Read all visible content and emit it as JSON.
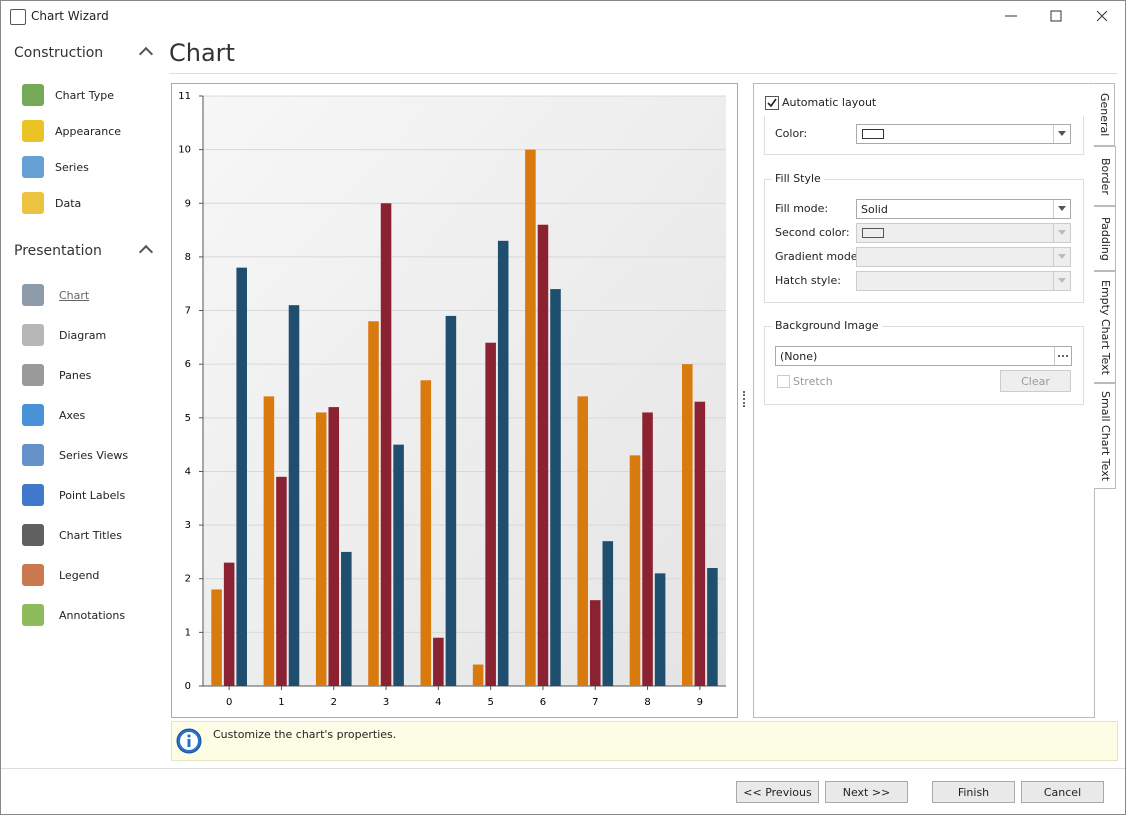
{
  "window": {
    "title": "Chart Wizard"
  },
  "nav": {
    "sections": [
      {
        "title": "Construction",
        "items": [
          "Chart Type",
          "Appearance",
          "Series",
          "Data"
        ]
      },
      {
        "title": "Presentation",
        "items": [
          "Chart",
          "Diagram",
          "Panes",
          "Axes",
          "Series Views",
          "Point Labels",
          "Chart Titles",
          "Legend",
          "Annotations"
        ]
      }
    ]
  },
  "page_title": "Chart",
  "chart_data": {
    "type": "bar",
    "categories": [
      "0",
      "1",
      "2",
      "3",
      "4",
      "5",
      "6",
      "7",
      "8",
      "9"
    ],
    "series": [
      {
        "color": "#d97a0e",
        "values": [
          1.8,
          5.4,
          5.1,
          6.8,
          5.7,
          0.4,
          10,
          5.4,
          4.3,
          6.0
        ]
      },
      {
        "color": "#8b2232",
        "values": [
          2.3,
          3.9,
          5.2,
          9.0,
          0.9,
          6.4,
          8.6,
          1.6,
          5.1,
          5.3
        ]
      },
      {
        "color": "#1f4e6e",
        "values": [
          7.8,
          7.1,
          2.5,
          4.5,
          6.9,
          8.3,
          7.4,
          2.7,
          2.1,
          2.2
        ]
      }
    ],
    "ylim": [
      0,
      11
    ],
    "yticks": [
      0,
      1,
      2,
      3,
      4,
      5,
      6,
      7,
      8,
      9,
      10,
      11
    ],
    "grid": true
  },
  "properties": {
    "automatic_layout": "Automatic layout",
    "color_label": "Color:",
    "fill_style": {
      "title": "Fill Style",
      "fill_mode_label": "Fill mode:",
      "fill_mode_value": "Solid",
      "second_color_label": "Second color:",
      "gradient_mode_label": "Gradient mode:",
      "hatch_style_label": "Hatch style:"
    },
    "background_image": {
      "title": "Background Image",
      "value": "(None)",
      "stretch": "Stretch",
      "clear": "Clear"
    }
  },
  "tabs": [
    "General",
    "Border",
    "Padding",
    "Empty Chart Text",
    "Small Chart Text"
  ],
  "hint": "Customize the chart's properties.",
  "buttons": [
    "<< Previous",
    "Next >>",
    "Finish",
    "Cancel"
  ]
}
